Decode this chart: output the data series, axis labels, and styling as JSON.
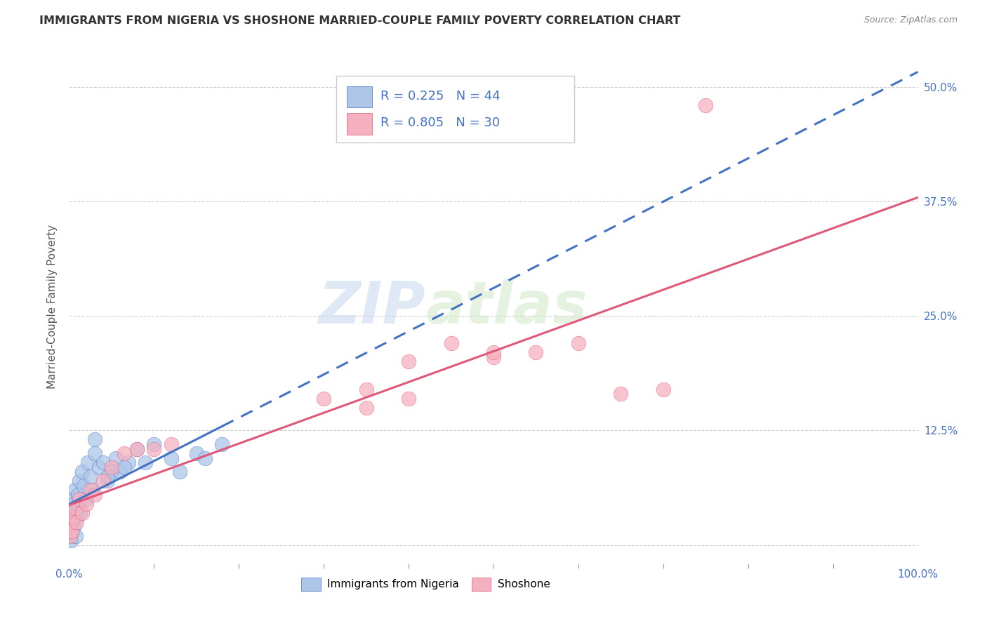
{
  "title": "IMMIGRANTS FROM NIGERIA VS SHOSHONE MARRIED-COUPLE FAMILY POVERTY CORRELATION CHART",
  "source": "Source: ZipAtlas.com",
  "ylabel": "Married-Couple Family Poverty",
  "legend_label1": "Immigrants from Nigeria",
  "legend_label2": "Shoshone",
  "R1": 0.225,
  "N1": 44,
  "R2": 0.805,
  "N2": 30,
  "color1": "#adc6e8",
  "color2": "#f5b0c0",
  "trend1_color": "#4472c4",
  "trend2_color": "#e05878",
  "watermark_zip": "ZIP",
  "watermark_atlas": "atlas",
  "ytick_vals": [
    0,
    12.5,
    25.0,
    37.5,
    50.0
  ],
  "ytick_labels": [
    "",
    "12.5%",
    "25.0%",
    "37.5%",
    "50.0%"
  ],
  "xtick_vals": [
    0,
    100
  ],
  "xtick_labels": [
    "0.0%",
    "100.0%"
  ],
  "xlim": [
    0,
    100
  ],
  "ylim": [
    -2,
    54
  ],
  "nigeria_x": [
    0.1,
    0.15,
    0.2,
    0.25,
    0.3,
    0.35,
    0.4,
    0.45,
    0.5,
    0.55,
    0.6,
    0.65,
    0.7,
    0.8,
    0.9,
    1.0,
    1.1,
    1.2,
    1.3,
    1.5,
    1.7,
    2.0,
    2.2,
    2.5,
    2.8,
    3.0,
    3.5,
    4.0,
    4.5,
    5.0,
    5.5,
    6.0,
    7.0,
    8.0,
    9.0,
    10.0,
    12.0,
    13.0,
    15.0,
    16.0,
    18.0,
    3.0,
    4.5,
    6.5
  ],
  "nigeria_y": [
    2.0,
    1.0,
    3.5,
    0.5,
    2.5,
    4.0,
    1.5,
    3.0,
    5.0,
    2.0,
    4.5,
    3.5,
    6.0,
    1.0,
    3.0,
    5.5,
    4.0,
    7.0,
    3.5,
    8.0,
    6.5,
    5.0,
    9.0,
    7.5,
    6.0,
    10.0,
    8.5,
    9.0,
    7.0,
    8.0,
    9.5,
    8.0,
    9.0,
    10.5,
    9.0,
    11.0,
    9.5,
    8.0,
    10.0,
    9.5,
    11.0,
    11.5,
    7.5,
    8.5
  ],
  "shoshone_x": [
    0.1,
    0.2,
    0.3,
    0.5,
    0.7,
    0.9,
    1.2,
    1.5,
    2.0,
    2.5,
    3.0,
    4.0,
    5.0,
    6.5,
    8.0,
    10.0,
    12.0,
    30.0,
    35.0,
    40.0,
    45.0,
    50.0,
    55.0,
    60.0,
    65.0,
    70.0,
    35.0,
    40.0,
    50.0,
    75.0
  ],
  "shoshone_y": [
    1.0,
    2.5,
    1.5,
    3.0,
    4.0,
    2.5,
    5.0,
    3.5,
    4.5,
    6.0,
    5.5,
    7.0,
    8.5,
    10.0,
    10.5,
    10.5,
    11.0,
    16.0,
    17.0,
    20.0,
    22.0,
    20.5,
    21.0,
    22.0,
    16.5,
    17.0,
    15.0,
    16.0,
    21.0,
    48.0
  ]
}
